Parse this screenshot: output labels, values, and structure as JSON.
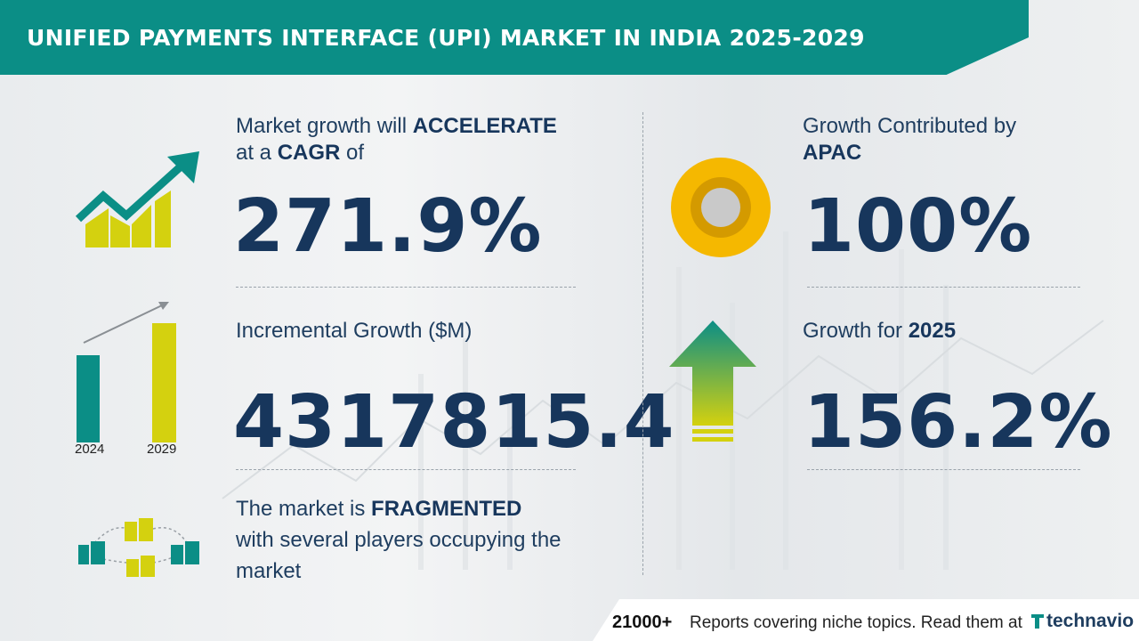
{
  "header": {
    "title": "UNIFIED PAYMENTS INTERFACE (UPI) MARKET IN INDIA 2025-2029"
  },
  "cagr": {
    "line1_pre": "Market growth will ",
    "line1_bold": "ACCELERATE",
    "line2_pre": "at a ",
    "line2_bold": "CAGR",
    "line2_post": " of",
    "value": "271.9%"
  },
  "incremental": {
    "label": "Incremental Growth ($M)",
    "value": "4317815.4",
    "year_start": "2024",
    "year_end": "2029"
  },
  "fragmented": {
    "line1_pre": "The market is ",
    "line1_bold": "FRAGMENTED",
    "line2": "with several players occupying the",
    "line3": "market"
  },
  "region": {
    "label": "Growth Contributed by",
    "name": "APAC",
    "value": "100%"
  },
  "yoy": {
    "label_pre": "Growth for ",
    "year": "2025",
    "value": "156.2%"
  },
  "footer": {
    "count": "21000+",
    "text": "Reports covering niche topics. Read them at",
    "brand": "technavio"
  },
  "colors": {
    "teal": "#0b8e86",
    "navy": "#17365c",
    "yellow": "#d4d10f",
    "gold": "#f5b800"
  }
}
